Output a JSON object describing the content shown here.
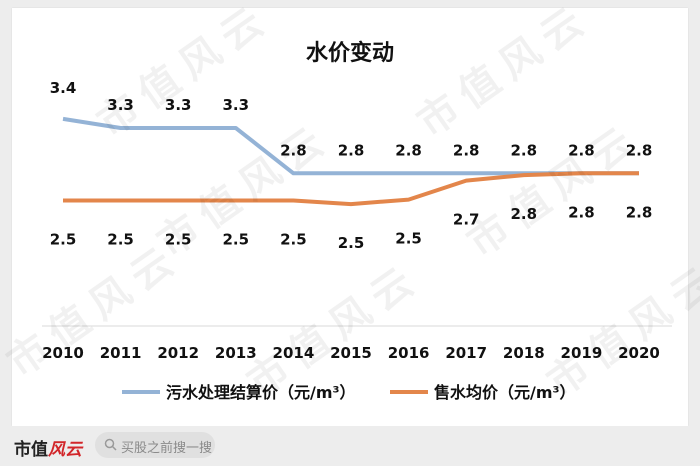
{
  "chart_data": {
    "type": "line",
    "title": "水价变动",
    "categories": [
      "2010",
      "2011",
      "2012",
      "2013",
      "2014",
      "2015",
      "2016",
      "2017",
      "2018",
      "2019",
      "2020"
    ],
    "series": [
      {
        "name": "污水处理结算价（元/m³）",
        "color": "#94b3d6",
        "values": [
          3.4,
          3.3,
          3.3,
          3.3,
          2.8,
          2.8,
          2.8,
          2.8,
          2.8,
          2.8,
          2.8
        ],
        "labels": [
          "3.4",
          "3.3",
          "3.3",
          "3.3",
          "2.8",
          "2.8",
          "2.8",
          "2.8",
          "2.8",
          "2.8",
          "2.8"
        ]
      },
      {
        "name": "售水均价（元/m³）",
        "color": "#e3864b",
        "values": [
          2.5,
          2.5,
          2.5,
          2.5,
          2.5,
          2.46,
          2.51,
          2.72,
          2.78,
          2.8,
          2.8
        ],
        "labels": [
          "2.5",
          "2.5",
          "2.5",
          "2.5",
          "2.5",
          "2.5",
          "2.5",
          "2.7",
          "2.8",
          "2.8",
          "2.8"
        ]
      }
    ],
    "legend": "bottom",
    "grid": false
  },
  "watermark": {
    "text": "市值风云"
  },
  "footer": {
    "brand_main": "市值",
    "brand_accent": "风云",
    "search_placeholder": "买股之前搜一搜",
    "search_icon": "search-icon"
  }
}
